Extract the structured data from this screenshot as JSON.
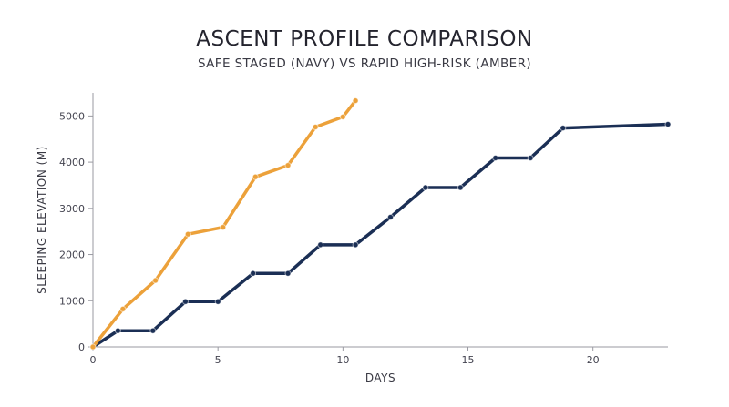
{
  "chart_data": {
    "type": "line",
    "title": "ASCENT PROFILE COMPARISON",
    "subtitle": "SAFE STAGED (NAVY) VS RAPID HIGH-RISK (AMBER)",
    "xlabel": "DAYS",
    "ylabel": "SLEEPING ELEVATION (M)",
    "xlim": [
      0,
      23
    ],
    "ylim": [
      0,
      5500
    ],
    "xticks": [
      0,
      5,
      10,
      15,
      20
    ],
    "yticks": [
      0,
      1000,
      2000,
      3000,
      4000,
      5000
    ],
    "grid": false,
    "legend": "none",
    "series": [
      {
        "color": "#1b2f55",
        "x": [
          0,
          1,
          2.4,
          3.7,
          5,
          6.4,
          7.8,
          9.1,
          10.5,
          11.9,
          13.3,
          14.7,
          16.1,
          17.5,
          18.8,
          23
        ],
        "y": [
          0,
          350,
          350,
          980,
          980,
          1590,
          1590,
          2210,
          2210,
          2810,
          3450,
          3450,
          4090,
          4090,
          4740,
          4820
        ]
      },
      {
        "color": "#eca13a",
        "x": [
          0,
          1.2,
          2.5,
          3.8,
          5.2,
          6.5,
          7.8,
          8.9,
          10,
          10.5
        ],
        "y": [
          0,
          820,
          1440,
          2440,
          2590,
          3680,
          3930,
          4760,
          4980,
          5330
        ]
      }
    ]
  }
}
